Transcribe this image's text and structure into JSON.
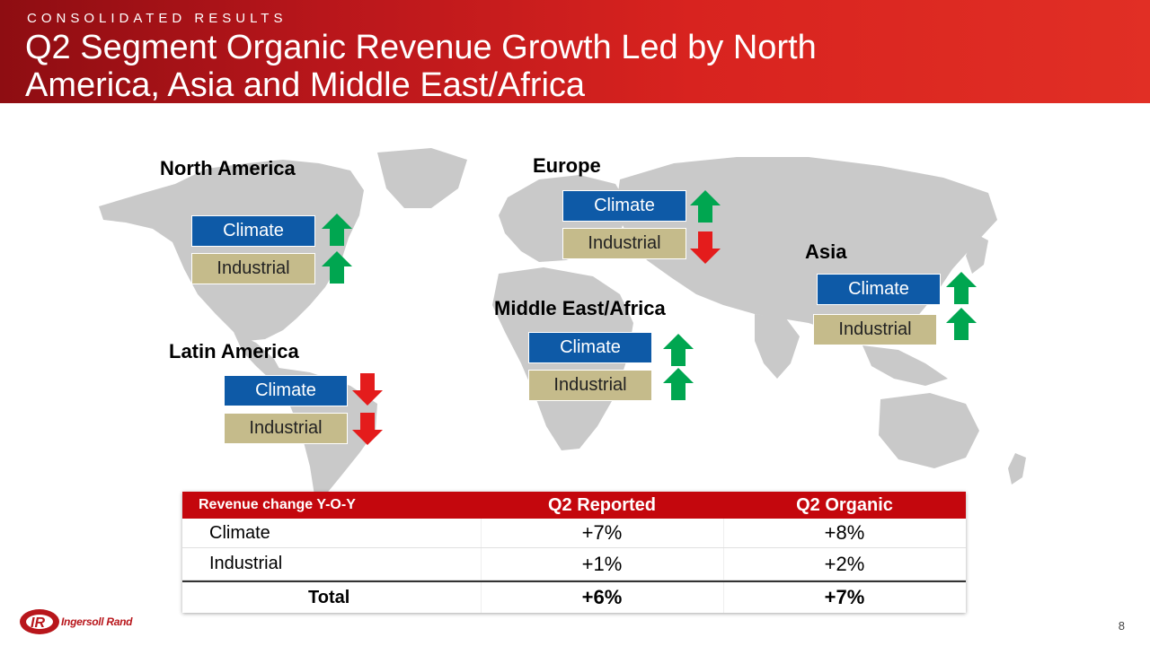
{
  "header": {
    "kicker": "CONSOLIDATED RESULTS",
    "title": "Q2 Segment Organic Revenue Growth Led by North America, Asia and Middle East/Africa"
  },
  "regions": [
    {
      "name": "North America",
      "climate": {
        "label": "Climate",
        "trend": "up"
      },
      "industrial": {
        "label": "Industrial",
        "trend": "up"
      }
    },
    {
      "name": "Europe",
      "climate": {
        "label": "Climate",
        "trend": "up"
      },
      "industrial": {
        "label": "Industrial",
        "trend": "down"
      }
    },
    {
      "name": "Asia",
      "climate": {
        "label": "Climate",
        "trend": "up"
      },
      "industrial": {
        "label": "Industrial",
        "trend": "up"
      }
    },
    {
      "name": "Middle East/Africa",
      "climate": {
        "label": "Climate",
        "trend": "up"
      },
      "industrial": {
        "label": "Industrial",
        "trend": "up"
      }
    },
    {
      "name": "Latin America",
      "climate": {
        "label": "Climate",
        "trend": "down"
      },
      "industrial": {
        "label": "Industrial",
        "trend": "down"
      }
    }
  ],
  "table": {
    "header_label": "Revenue change Y-O-Y",
    "col1": "Q2 Reported",
    "col2": "Q2 Organic",
    "rows": [
      {
        "name": "Climate",
        "reported": "+7%",
        "organic": "+8%"
      },
      {
        "name": "Industrial",
        "reported": "+1%",
        "organic": "+2%"
      }
    ],
    "total": {
      "name": "Total",
      "reported": "+6%",
      "organic": "+7%"
    }
  },
  "footer": {
    "logo_text": "Ingersoll Rand",
    "page_number": "8"
  },
  "colors": {
    "climate": "#0e5aa7",
    "industrial": "#c5bb8b",
    "up_arrow": "#00a650",
    "down_arrow": "#e41c1c",
    "header_red": "#c4070d"
  },
  "icons": {
    "up": "arrow-up-icon",
    "down": "arrow-down-icon",
    "map": "world-map-icon"
  }
}
